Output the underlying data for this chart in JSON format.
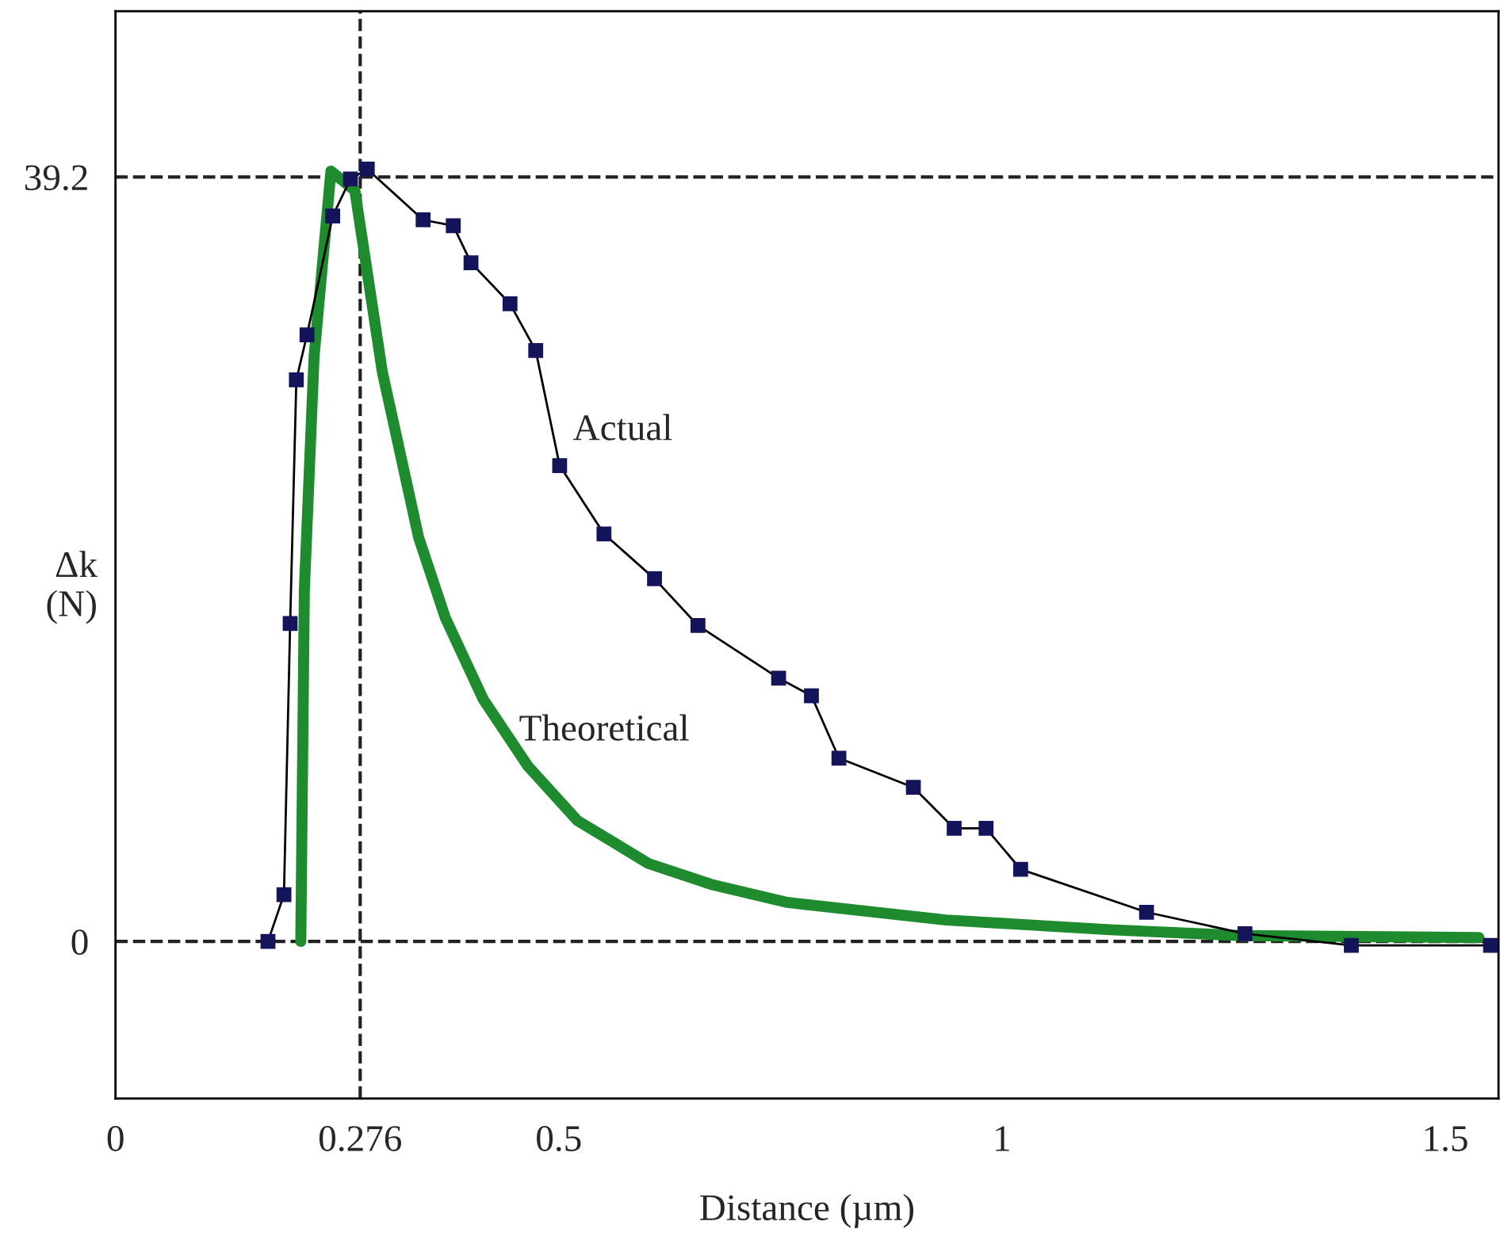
{
  "chart_data": {
    "type": "line",
    "xlabel": "Distance (µm)",
    "ylabel": "Δk\n(N)",
    "xlim": [
      0,
      1.56
    ],
    "ylim": [
      -8.05,
      47.7
    ],
    "xticks": [
      0,
      0.276,
      0.5,
      1,
      1.5
    ],
    "yticks": [
      0,
      39.2
    ],
    "grid": false,
    "ref_lines": [
      {
        "axis": "y",
        "value": 0,
        "line_style": "dashed",
        "color": "#222222"
      },
      {
        "axis": "y",
        "value": 39.2,
        "line_style": "dashed",
        "color": "#222222"
      },
      {
        "axis": "x",
        "value": 0.276,
        "line_style": "dashed",
        "color": "#222222"
      }
    ],
    "series": [
      {
        "name": "Actual",
        "color": "#14145a",
        "marker": "square",
        "line_style": "solid",
        "x": [
          0.172,
          0.19,
          0.197,
          0.204,
          0.216,
          0.245,
          0.265,
          0.284,
          0.347,
          0.381,
          0.401,
          0.445,
          0.474,
          0.501,
          0.551,
          0.608,
          0.657,
          0.748,
          0.785,
          0.816,
          0.9,
          0.946,
          0.982,
          1.021,
          1.163,
          1.274,
          1.394,
          1.551
        ],
        "values": [
          0,
          2.4,
          16.3,
          28.8,
          31.1,
          37.2,
          39.1,
          39.6,
          37.0,
          36.7,
          34.8,
          32.7,
          30.3,
          24.4,
          20.9,
          18.6,
          16.2,
          13.5,
          12.6,
          9.4,
          7.9,
          5.8,
          5.8,
          3.7,
          1.5,
          0.4,
          -0.2,
          -0.2
        ]
      },
      {
        "name": "Theoretical",
        "color": "#1e8c2e",
        "marker": "none",
        "line_style": "solid",
        "x": [
          0.209,
          0.213,
          0.224,
          0.243,
          0.27,
          0.301,
          0.342,
          0.372,
          0.415,
          0.465,
          0.521,
          0.601,
          0.674,
          0.758,
          0.937,
          1.122,
          1.27,
          1.538
        ],
        "values": [
          0,
          18.0,
          30.0,
          39.5,
          38.5,
          29.2,
          20.7,
          16.6,
          12.4,
          9.0,
          6.2,
          4.0,
          2.9,
          2.0,
          1.1,
          0.6,
          0.3,
          0.2
        ]
      }
    ]
  }
}
